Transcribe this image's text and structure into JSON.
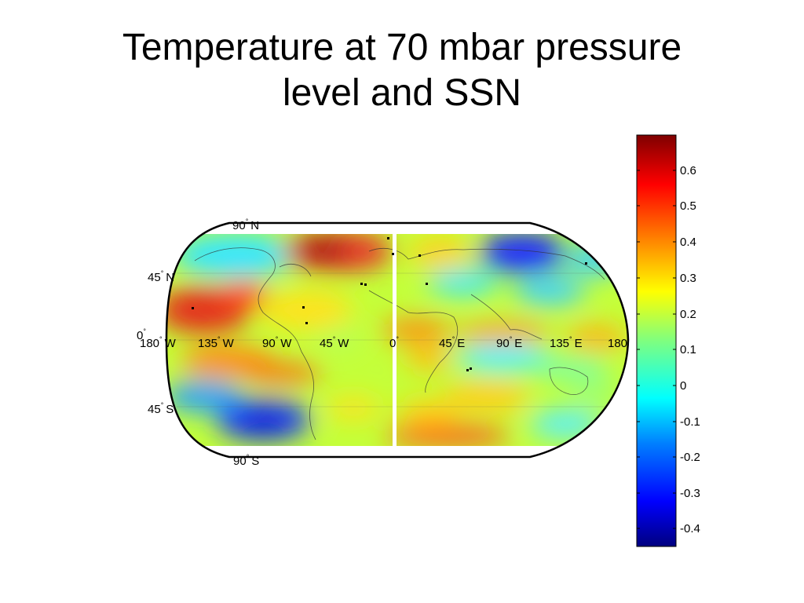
{
  "title_lines": [
    "Temperature at 70 mbar pressure",
    "level and SSN"
  ],
  "map": {
    "projection": "Robinson-like global map",
    "lat_labels": [
      {
        "deg": "90",
        "sym": "°",
        "hem": "N"
      },
      {
        "deg": "45",
        "sym": "°",
        "hem": "N"
      },
      {
        "deg": "0",
        "sym": "°",
        "hem": ""
      },
      {
        "deg": "45",
        "sym": "°",
        "hem": "S"
      },
      {
        "deg": "90",
        "sym": "°",
        "hem": "S"
      }
    ],
    "lon_labels": [
      {
        "deg": "180",
        "sym": "°",
        "hem": "W"
      },
      {
        "deg": "135",
        "sym": "°",
        "hem": "W"
      },
      {
        "deg": "90",
        "sym": "°",
        "hem": "W"
      },
      {
        "deg": "45",
        "sym": "°",
        "hem": "W"
      },
      {
        "deg": "0",
        "sym": "°",
        "hem": ""
      },
      {
        "deg": "45",
        "sym": "°",
        "hem": "E"
      },
      {
        "deg": "90",
        "sym": "°",
        "hem": "E"
      },
      {
        "deg": "135",
        "sym": "°",
        "hem": "E"
      },
      {
        "deg": "180",
        "sym": "",
        "hem": ""
      }
    ]
  },
  "colorbar": {
    "tick_labels": [
      "0.6",
      "0.5",
      "0.4",
      "0.3",
      "0.2",
      "0.1",
      "0",
      "-0.1",
      "-0.2",
      "-0.3",
      "-0.4"
    ],
    "colormap": "jet",
    "colors": [
      "#00007f",
      "#0000ff",
      "#007fff",
      "#00ffff",
      "#7fff7f",
      "#ffff00",
      "#ff7f00",
      "#ff0000",
      "#7f0000"
    ]
  }
}
